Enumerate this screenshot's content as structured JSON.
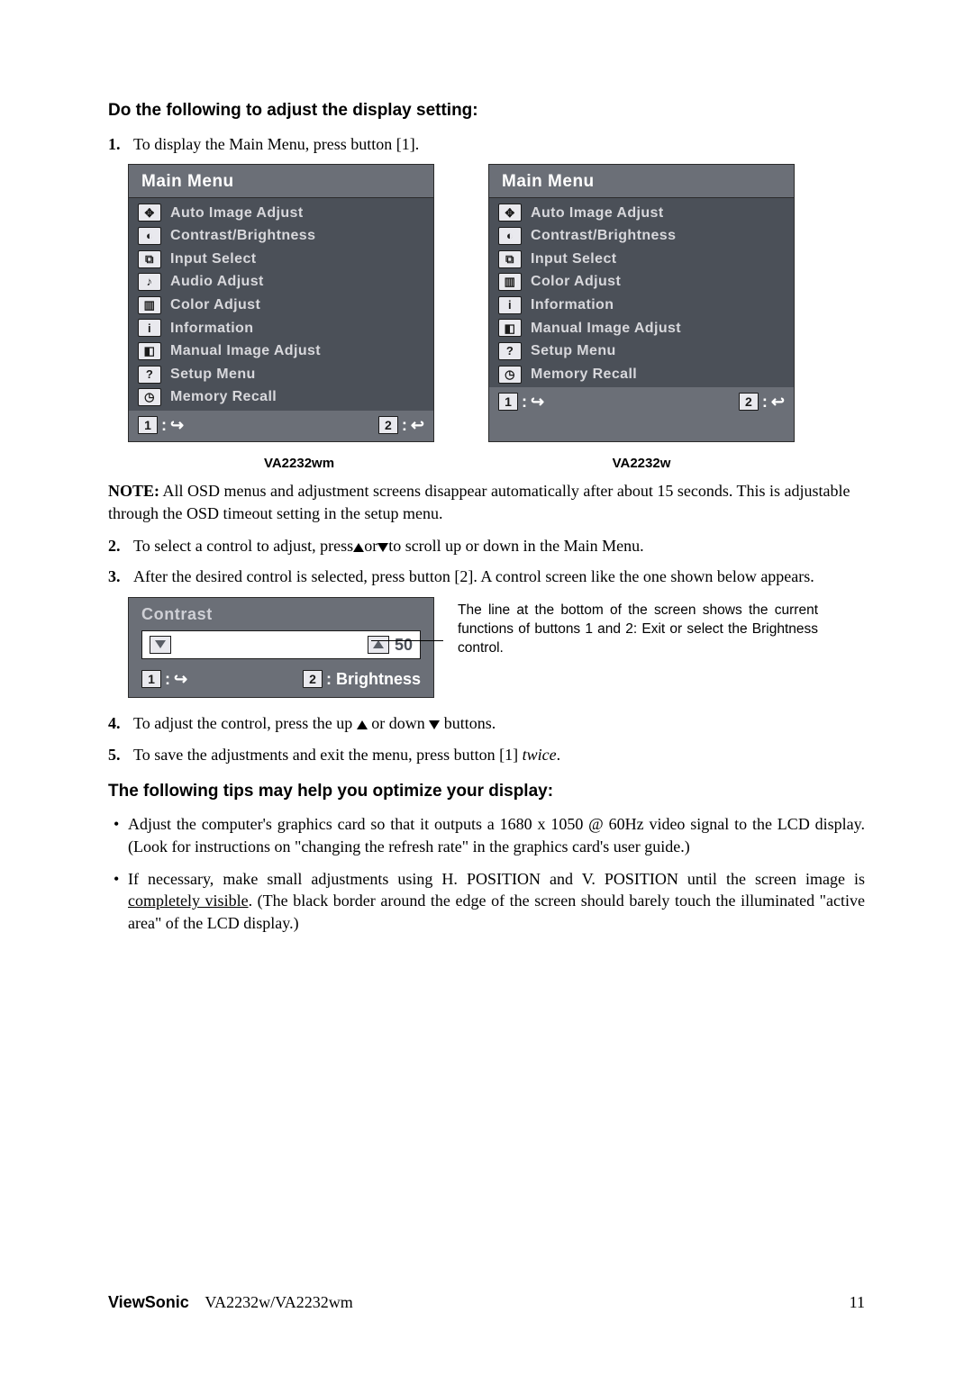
{
  "headings": {
    "adjust": "Do the following to adjust the display setting:",
    "tips": "The following tips may help you optimize your display:"
  },
  "steps": {
    "s1_num": "1.",
    "s1": "To display the Main Menu, press button [1].",
    "s2_num": "2.",
    "s2_a": "To select a control to adjust, press",
    "s2_b": "or",
    "s2_c": "to scroll up or down in the Main Menu.",
    "s3_num": "3.",
    "s3": "After the desired control is selected, press button [2]. A control screen like the one shown below appears.",
    "s4_num": "4.",
    "s4_a": "To adjust the control, press the up ",
    "s4_b": " or down ",
    "s4_c": " buttons.",
    "s5_num": "5.",
    "s5_a": "To save the adjustments and exit the menu, press button [1] ",
    "s5_b": "twice",
    "s5_c": "."
  },
  "note": {
    "label": "NOTE:",
    "text": " All OSD menus and adjustment screens disappear automatically after about 15 seconds. This is adjustable through the OSD timeout setting in the setup menu."
  },
  "menu": {
    "title": "Main Menu",
    "left_caption": "VA2232wm",
    "right_caption": "VA2232w",
    "foot_1": "1",
    "foot_2": "2",
    "exit_glyph": "↪",
    "enter_glyph": "↩",
    "left_items": [
      {
        "icon": "✥",
        "label": "Auto Image Adjust"
      },
      {
        "icon": "◐",
        "label": "Contrast/Brightness"
      },
      {
        "icon": "⧉",
        "label": "Input Select"
      },
      {
        "icon": "♪",
        "label": "Audio Adjust"
      },
      {
        "icon": "▥",
        "label": "Color Adjust"
      },
      {
        "icon": "i",
        "label": "Information"
      },
      {
        "icon": "◧",
        "label": "Manual Image Adjust"
      },
      {
        "icon": "?",
        "label": "Setup Menu"
      },
      {
        "icon": "◷",
        "label": "Memory Recall"
      }
    ],
    "right_items": [
      {
        "icon": "✥",
        "label": "Auto Image Adjust"
      },
      {
        "icon": "◐",
        "label": "Contrast/Brightness"
      },
      {
        "icon": "⧉",
        "label": "Input Select"
      },
      {
        "icon": "▥",
        "label": "Color Adjust"
      },
      {
        "icon": "i",
        "label": "Information"
      },
      {
        "icon": "◧",
        "label": "Manual Image Adjust"
      },
      {
        "icon": "?",
        "label": "Setup Menu"
      },
      {
        "icon": "◷",
        "label": "Memory Recall"
      }
    ]
  },
  "contrast": {
    "title": "Contrast",
    "value": "50",
    "foot_1": "1",
    "foot_2_label": ": Brightness",
    "foot_2_num": "2"
  },
  "annotation": "The line at the bottom of the screen shows the current functions of buttons 1 and 2: Exit or select the Brightness control.",
  "tips": {
    "t1": "Adjust the computer's graphics card so that it outputs a 1680 x 1050 @ 60Hz video signal to the LCD display. (Look for instructions on \"changing the refresh rate\" in the graphics card's user guide.)",
    "t2_a": "If necessary, make small adjustments using H. POSITION and V. POSITION until the screen image is ",
    "t2_u": "completely visible",
    "t2_b": ". (The black border around the edge of the screen should barely touch the illuminated \"active area\" of the LCD display.)"
  },
  "footer": {
    "brand": "ViewSonic",
    "model": "VA2232w/VA2232wm",
    "page": "11"
  }
}
